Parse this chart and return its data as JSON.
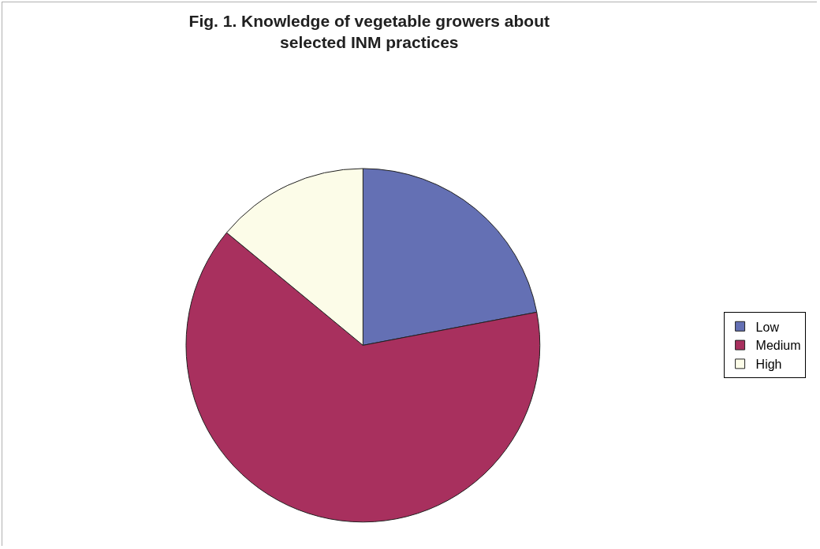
{
  "chart_data": {
    "type": "pie",
    "title": "Fig. 1. Knowledge of vegetable growers about selected INM practices",
    "categories": [
      "Low",
      "Medium",
      "High"
    ],
    "values": [
      22,
      64,
      14
    ],
    "colors": [
      "#6470b4",
      "#a8305e",
      "#fcfce8"
    ],
    "legend": "right"
  }
}
